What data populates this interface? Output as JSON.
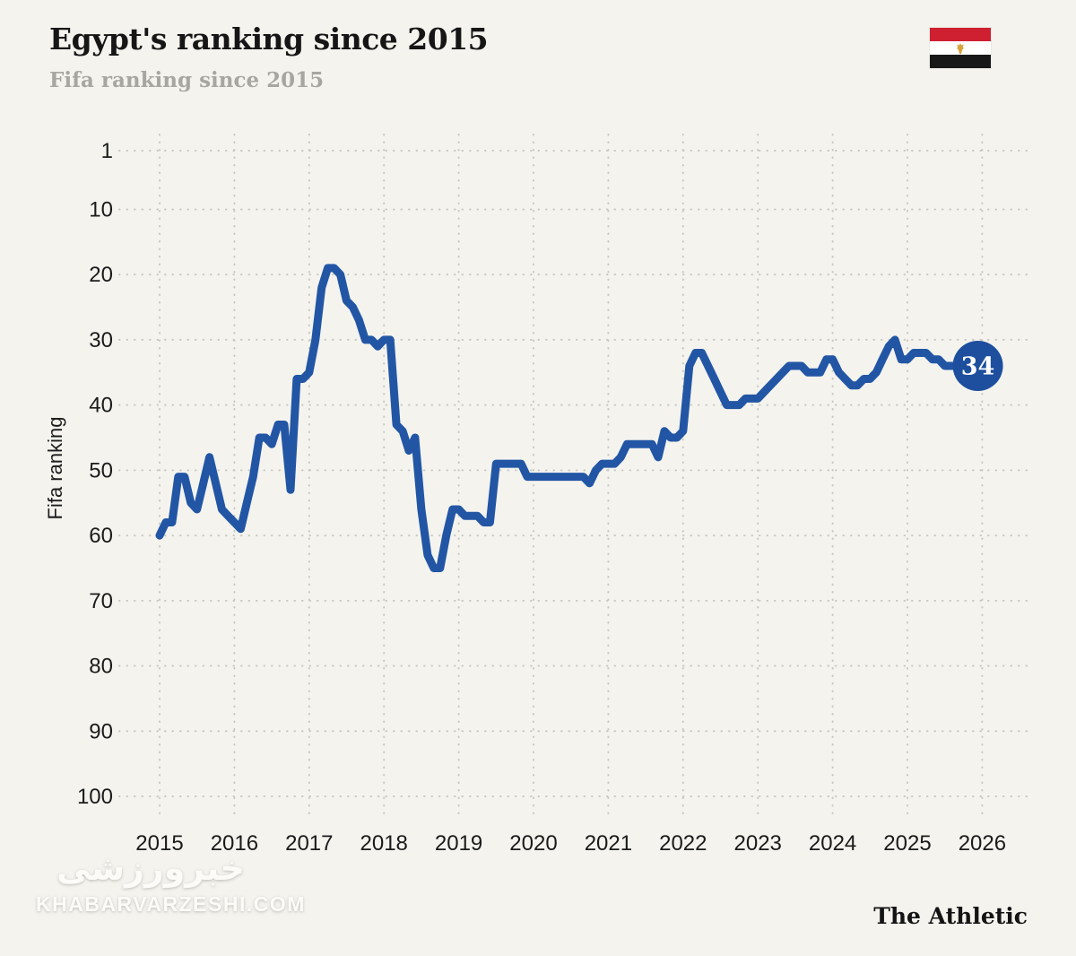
{
  "header": {
    "title": "Egypt's ranking since 2015",
    "subtitle": "Fifa ranking since 2015",
    "flag": "egypt-flag"
  },
  "chart_data": {
    "type": "line",
    "title": "Egypt's ranking since 2015",
    "subtitle": "Fifa ranking since 2015",
    "xlabel": "",
    "ylabel": "Fifa ranking",
    "grid": "dotted",
    "y_axis": {
      "ticks": [
        1,
        10,
        20,
        30,
        40,
        50,
        60,
        70,
        80,
        90,
        100
      ],
      "range": [
        1,
        100
      ],
      "inverted": true
    },
    "x_axis": {
      "ticks": [
        2015,
        2016,
        2017,
        2018,
        2019,
        2020,
        2021,
        2022,
        2023,
        2024,
        2025,
        2026
      ],
      "range": [
        2015,
        2026
      ]
    },
    "series": [
      {
        "name": "Egypt Fifa ranking",
        "frequency": "monthly",
        "start": "2015-01",
        "end": "2025-10",
        "values_by_year": [
          {
            "year": 2015,
            "ranks": [
              60,
              58,
              58,
              51,
              51,
              55,
              56,
              52,
              48,
              52,
              56,
              57
            ]
          },
          {
            "year": 2016,
            "ranks": [
              58,
              59,
              55,
              51,
              45,
              45,
              46,
              43,
              43,
              53,
              36,
              36
            ]
          },
          {
            "year": 2017,
            "ranks": [
              35,
              30,
              22,
              19,
              19,
              20,
              24,
              25,
              27,
              30,
              30,
              31
            ]
          },
          {
            "year": 2018,
            "ranks": [
              30,
              30,
              43,
              44,
              47,
              45,
              56,
              63,
              65,
              65,
              60,
              56
            ]
          },
          {
            "year": 2019,
            "ranks": [
              56,
              57,
              57,
              57,
              58,
              58,
              49,
              49,
              49,
              49,
              49,
              51
            ]
          },
          {
            "year": 2020,
            "ranks": [
              51,
              51,
              51,
              51,
              51,
              51,
              51,
              51,
              51,
              52,
              50,
              49
            ]
          },
          {
            "year": 2021,
            "ranks": [
              49,
              49,
              48,
              46,
              46,
              46,
              46,
              46,
              48,
              44,
              45,
              45
            ]
          },
          {
            "year": 2022,
            "ranks": [
              44,
              34,
              32,
              32,
              34,
              36,
              38,
              40,
              40,
              40,
              39,
              39
            ]
          },
          {
            "year": 2023,
            "ranks": [
              39,
              38,
              37,
              36,
              35,
              34,
              34,
              34,
              35,
              35,
              35,
              33
            ]
          },
          {
            "year": 2024,
            "ranks": [
              33,
              35,
              36,
              37,
              37,
              36,
              36,
              35,
              33,
              31,
              30,
              33
            ]
          },
          {
            "year": 2025,
            "ranks": [
              33,
              32,
              32,
              32,
              33,
              33,
              34,
              34,
              34,
              34
            ]
          }
        ]
      }
    ],
    "endpoint": {
      "label": "34",
      "value": 34
    }
  },
  "footer": {
    "credit": "The Athletic",
    "watermark_logo": "خبرورزشی",
    "watermark_site": "KHABARVARZESHI.COM"
  },
  "colors": {
    "background": "#f4f3ee",
    "line": "#2256a5",
    "badge": "#1d4f9e",
    "badge_text": "#ffffff",
    "grid": "#c8c7c1",
    "tick_text": "#1b1b1b",
    "title_text": "#161616",
    "subtitle_text": "#a7a6a0",
    "flag_red": "#cf2031",
    "flag_white": "#ffffff",
    "flag_black": "#181818",
    "eagle_gold": "#d8a33a"
  }
}
